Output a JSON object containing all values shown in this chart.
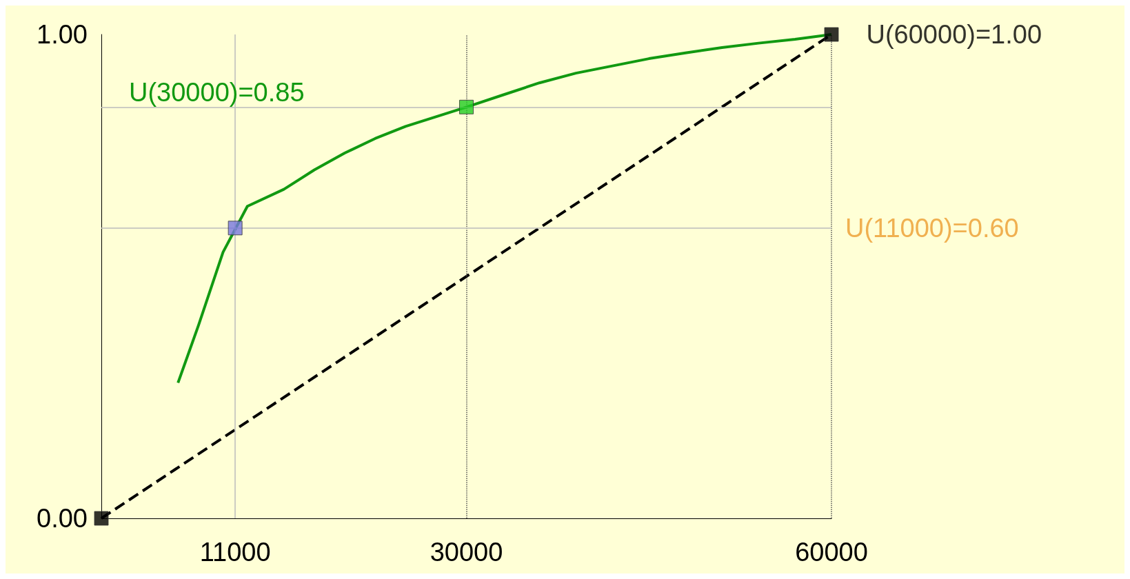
{
  "chart_data": {
    "type": "line",
    "xlim": [
      0,
      60000
    ],
    "ylim": [
      0,
      1
    ],
    "xticks": [
      11000,
      30000,
      60000
    ],
    "yticks": [
      {
        "value": 0,
        "label": "0.00"
      },
      {
        "value": 1,
        "label": "1.00"
      }
    ],
    "grid": false,
    "series": [
      {
        "color": "#119911",
        "marker": "none",
        "line_style": "solid",
        "x": [
          6300,
          8000,
          10000,
          12000,
          15000,
          17500,
          20000,
          22500,
          25000,
          27500,
          30000,
          33000,
          36000,
          39000,
          42000,
          45000,
          48000,
          51000,
          54000,
          57000,
          60000
        ],
        "values": [
          0.28,
          0.4,
          0.55,
          0.645,
          0.68,
          0.72,
          0.755,
          0.785,
          0.81,
          0.83,
          0.85,
          0.875,
          0.9,
          0.92,
          0.935,
          0.95,
          0.962,
          0.973,
          0.982,
          0.99,
          1.0
        ]
      },
      {
        "color": "#000000",
        "marker": "none",
        "line_style": "dashed",
        "x": [
          0,
          60000
        ],
        "values": [
          0,
          1
        ]
      },
      {
        "type": "scatter",
        "marker": "square",
        "x": [
          0,
          11000,
          30000,
          60000
        ],
        "values": [
          0,
          0.6,
          0.85,
          1.0
        ],
        "colors": [
          "#000000",
          "#7777dd",
          "#22cc22",
          "#000000"
        ],
        "value_labels": [
          null,
          null,
          null,
          "U(60000)=1.00"
        ]
      }
    ],
    "ref_lines": [
      {
        "axis": "x",
        "value": 11000,
        "color": "#bbbbbb",
        "line_style": "solid"
      },
      {
        "axis": "x",
        "value": 30000,
        "color": "#555555",
        "line_style": "dotted"
      },
      {
        "axis": "x",
        "value": 60000,
        "color": "#555555",
        "line_style": "dotted"
      },
      {
        "axis": "y",
        "value": 0.6,
        "color": "#bbbbbb",
        "line_style": "solid",
        "label": "U(11000)=0.60"
      },
      {
        "axis": "y",
        "value": 0.85,
        "color": "#bbbbbb",
        "line_style": "solid",
        "label": "U(30000)=0.85"
      }
    ]
  }
}
